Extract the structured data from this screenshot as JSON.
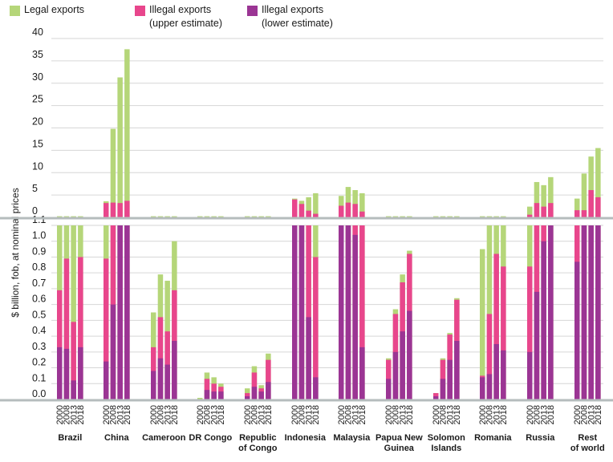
{
  "colors": {
    "legal": "#b5d679",
    "illegal_upper": "#e8468c",
    "illegal_lower": "#9b3594",
    "axis": "#b5bcbd",
    "grid": "#d6d6d6"
  },
  "chart_data": {
    "type": "bar",
    "stacked": true,
    "split_axis": true,
    "legend": [
      {
        "key": "legal",
        "label": "Legal exports",
        "label2": ""
      },
      {
        "key": "illegal_upper",
        "label": "Illegal exports",
        "label2": "(upper estimate)"
      },
      {
        "key": "illegal_lower",
        "label": "Illegal exports",
        "label2": "(lower estimate)"
      }
    ],
    "ylabel": "$ billion, fob, at nominal prices",
    "years": [
      "2000",
      "2008",
      "2013",
      "2018"
    ],
    "upper_panel": {
      "ylim": [
        0,
        40
      ],
      "ticks": [
        "0",
        "5",
        "10",
        "15",
        "20",
        "25",
        "30",
        "35",
        "40"
      ]
    },
    "lower_panel": {
      "ylim": [
        0,
        1.1
      ],
      "ticks": [
        "0.0",
        "0.1",
        "0.2",
        "0.3",
        "0.4",
        "0.5",
        "0.6",
        "0.7",
        "0.8",
        "0.9",
        "1.0",
        "1.1"
      ]
    },
    "grid": true,
    "groups": [
      {
        "name": "Brazil",
        "name2": "",
        "panel": "lower",
        "legal": [
          1.1,
          1.1,
          1.1,
          1.1
        ],
        "illegal_upper": [
          0.69,
          0.89,
          0.49,
          0.9
        ],
        "illegal_lower": [
          0.33,
          0.32,
          0.12,
          0.33
        ]
      },
      {
        "name": "China",
        "name2": "",
        "panel": "both",
        "upper_totals": [
          3.6,
          19.8,
          31.3,
          37.6
        ],
        "upper_illegal": [
          3.2,
          3.3,
          3.2,
          3.7
        ],
        "legal": [
          1.1,
          1.1,
          1.1,
          1.1
        ],
        "illegal_upper": [
          0.89,
          1.1,
          1.1,
          1.1
        ],
        "illegal_lower": [
          0.24,
          0.6,
          1.1,
          1.1
        ]
      },
      {
        "name": "Cameroon",
        "name2": "",
        "panel": "lower",
        "legal": [
          0.55,
          0.79,
          0.75,
          1.0
        ],
        "illegal_upper": [
          0.33,
          0.52,
          0.43,
          0.69
        ],
        "illegal_lower": [
          0.18,
          0.26,
          0.22,
          0.37
        ]
      },
      {
        "name": "DR Congo",
        "name2": "",
        "panel": "lower",
        "legal": [
          0.01,
          0.17,
          0.14,
          0.1
        ],
        "illegal_upper": [
          0.0,
          0.13,
          0.1,
          0.08
        ],
        "illegal_lower": [
          0.0,
          0.06,
          0.05,
          0.05
        ]
      },
      {
        "name": "Republic",
        "name2": "of Congo",
        "panel": "lower",
        "legal": [
          0.07,
          0.21,
          0.09,
          0.29
        ],
        "illegal_upper": [
          0.04,
          0.17,
          0.07,
          0.25
        ],
        "illegal_lower": [
          0.02,
          0.08,
          0.05,
          0.11
        ]
      },
      {
        "name": "Indonesia",
        "name2": "",
        "panel": "both",
        "upper_totals": [
          4.2,
          3.7,
          4.5,
          5.4
        ],
        "upper_illegal": [
          4.0,
          3.0,
          1.5,
          0.8
        ],
        "legal": [
          1.1,
          1.1,
          1.1,
          1.1
        ],
        "illegal_upper": [
          1.1,
          1.1,
          1.1,
          0.9
        ],
        "illegal_lower": [
          1.1,
          1.1,
          0.52,
          0.14
        ]
      },
      {
        "name": "Malaysia",
        "name2": "",
        "panel": "both",
        "upper_totals": [
          4.8,
          6.8,
          6.1,
          5.4
        ],
        "upper_illegal": [
          2.6,
          3.3,
          3.0,
          1.3
        ],
        "legal": [
          1.1,
          1.1,
          1.1,
          1.1
        ],
        "illegal_upper": [
          1.1,
          1.1,
          1.1,
          1.1
        ],
        "illegal_lower": [
          1.1,
          1.1,
          1.04,
          0.33
        ]
      },
      {
        "name": "Papua New",
        "name2": "Guinea",
        "panel": "lower",
        "legal": [
          0.26,
          0.57,
          0.79,
          0.94
        ],
        "illegal_upper": [
          0.25,
          0.54,
          0.74,
          0.92
        ],
        "illegal_lower": [
          0.13,
          0.3,
          0.43,
          0.56
        ]
      },
      {
        "name": "Solomon",
        "name2": "Islands",
        "panel": "lower",
        "legal": [
          0.04,
          0.26,
          0.42,
          0.64
        ],
        "illegal_upper": [
          0.04,
          0.25,
          0.41,
          0.63
        ],
        "illegal_lower": [
          0.02,
          0.13,
          0.25,
          0.37
        ]
      },
      {
        "name": "Romania",
        "name2": "",
        "panel": "lower",
        "legal": [
          0.95,
          1.1,
          1.1,
          1.1
        ],
        "illegal_upper": [
          0.15,
          0.54,
          0.92,
          0.84
        ],
        "illegal_lower": [
          0.14,
          0.16,
          0.35,
          0.31
        ]
      },
      {
        "name": "Russia",
        "name2": "",
        "panel": "both",
        "upper_totals": [
          2.4,
          7.9,
          7.2,
          9.0
        ],
        "upper_illegal": [
          0.6,
          3.2,
          2.4,
          3.2
        ],
        "legal": [
          1.1,
          1.1,
          1.1,
          1.1
        ],
        "illegal_upper": [
          0.84,
          1.1,
          1.1,
          1.1
        ],
        "illegal_lower": [
          0.3,
          0.68,
          1.0,
          1.1
        ]
      },
      {
        "name": "Rest",
        "name2": "of world",
        "panel": "both",
        "upper_totals": [
          4.2,
          9.8,
          13.6,
          15.5
        ],
        "upper_illegal": [
          1.6,
          1.6,
          6.1,
          4.5
        ],
        "legal": [
          1.1,
          1.1,
          1.1,
          1.1
        ],
        "illegal_upper": [
          1.1,
          1.1,
          1.1,
          1.1
        ],
        "illegal_lower": [
          0.87,
          1.1,
          1.1,
          1.1
        ]
      }
    ]
  }
}
